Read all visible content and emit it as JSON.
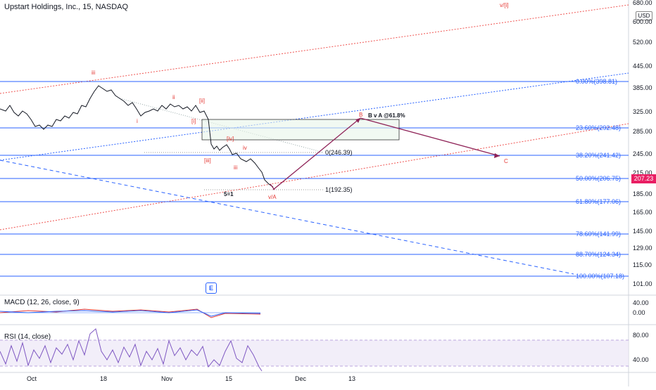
{
  "header": {
    "title": "Upstart Holdings, Inc., 15, NASDAQ",
    "currency": "USD"
  },
  "price_axis": {
    "ticks": [
      "680.00",
      "600.00",
      "520.00",
      "445.00",
      "385.00",
      "325.00",
      "285.00",
      "245.00",
      "215.00",
      "185.00",
      "165.00",
      "145.00",
      "129.00",
      "115.00",
      "101.00"
    ],
    "last_price": "207.23"
  },
  "time_axis": {
    "labels": [
      "Oct",
      "18",
      "Nov",
      "15",
      "Dec",
      "13"
    ]
  },
  "fib_levels": [
    {
      "label": "0.00%(398.81)"
    },
    {
      "label": "23.60%(292.48)"
    },
    {
      "label": "38.20%(241.42)"
    },
    {
      "label": "50.00%(206.75)"
    },
    {
      "label": "61.80%(177.06)"
    },
    {
      "label": "78.60%(141.99)"
    },
    {
      "label": "88.70%(124.34)"
    },
    {
      "label": "100.00%(107.18)"
    }
  ],
  "annotations": {
    "top_wave": "v/[i]",
    "wave_iii": "iii",
    "wave_ii": "ii",
    "wave_ii_bracket": "[ii]",
    "wave_i": "i",
    "wave_i_bracket": "[i]",
    "wave_iii_bracket": "[iii]",
    "wave_iv_bracket": "[iv]",
    "wave_iv": "iv",
    "wave_iii_small": "iii",
    "five_eq_one": "5=1",
    "wave_va": "v/A",
    "wave_b": "B",
    "b_v_a": "B v A @61.8%",
    "wave_c": "C",
    "fib_zero": "0(246.39)",
    "fib_one": "1(192.35)"
  },
  "macd": {
    "label": "MACD (12, 26, close, 9)",
    "ticks": [
      "40.00",
      "0.00"
    ]
  },
  "rsi": {
    "label": "RSI (14, close)",
    "ticks": [
      "80.00",
      "40.00"
    ]
  },
  "e_button": "E",
  "colors": {
    "fib": "#2962ff",
    "wave": "#e53935",
    "arrow": "#8e2257",
    "rsi_band": "#7e57c2"
  }
}
